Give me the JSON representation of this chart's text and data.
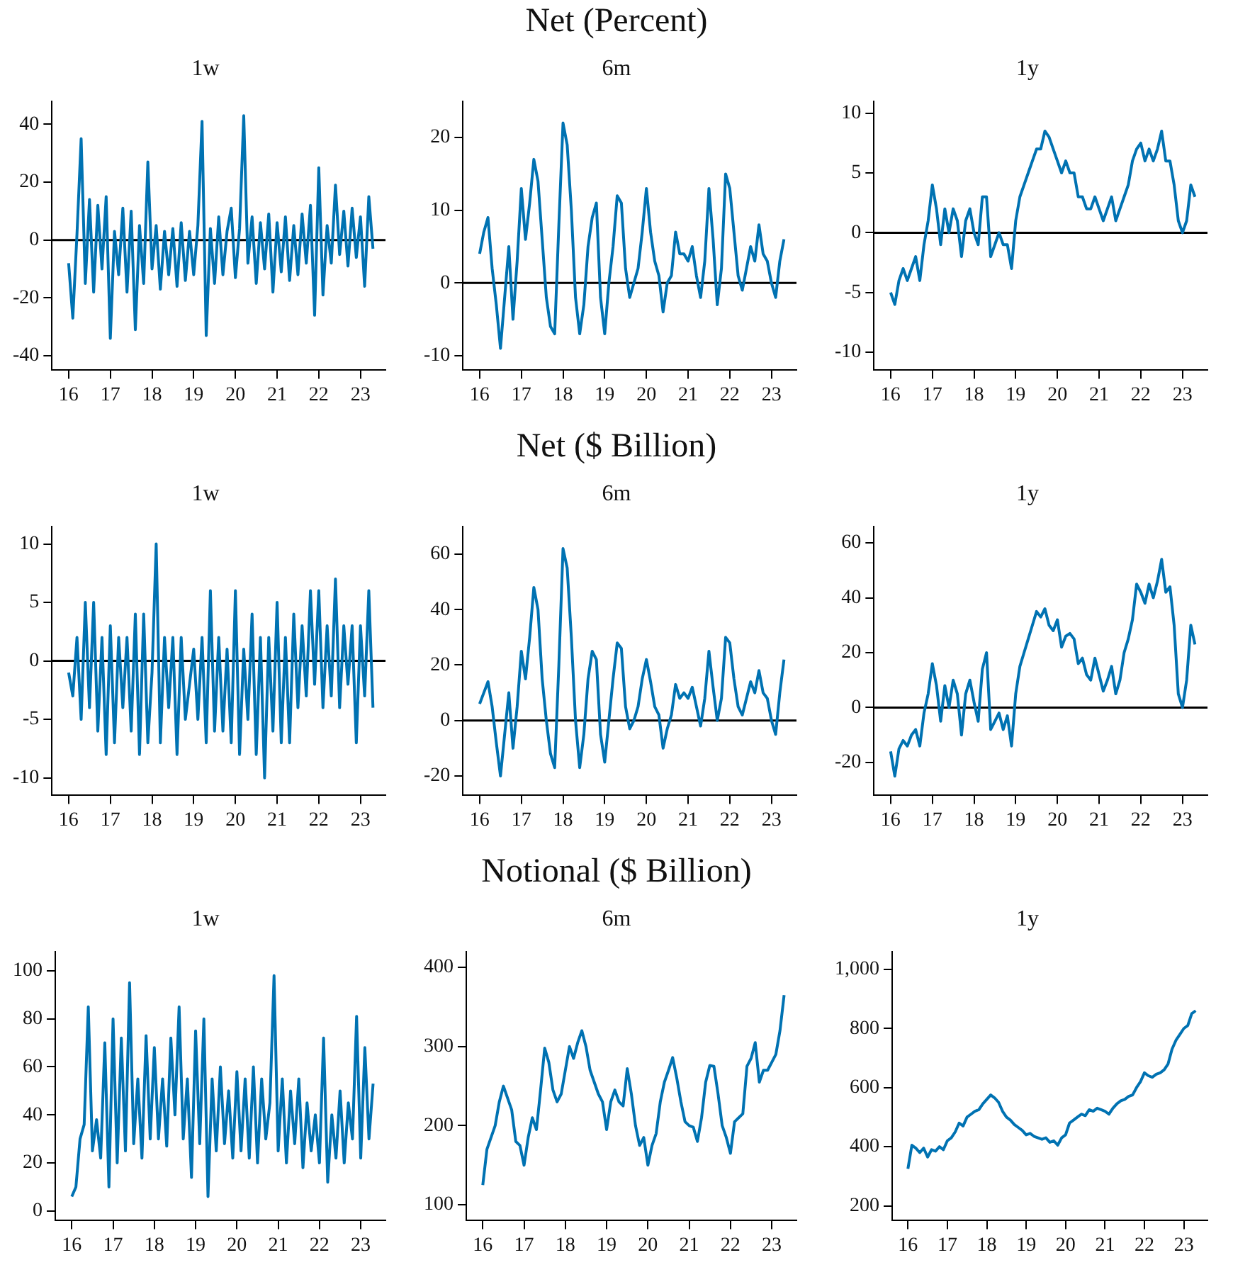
{
  "chart_data": [
    {
      "type": "line",
      "subtitle": "1w",
      "x": [
        16.0,
        16.1,
        16.2,
        16.3,
        16.4,
        16.5,
        16.6,
        16.7,
        16.8,
        16.9,
        17.0,
        17.1,
        17.2,
        17.3,
        17.4,
        17.5,
        17.6,
        17.7,
        17.8,
        17.9,
        18.0,
        18.1,
        18.2,
        18.3,
        18.4,
        18.5,
        18.6,
        18.7,
        18.8,
        18.9,
        19.0,
        19.1,
        19.2,
        19.3,
        19.4,
        19.5,
        19.6,
        19.7,
        19.8,
        19.9,
        20.0,
        20.1,
        20.2,
        20.3,
        20.4,
        20.5,
        20.6,
        20.7,
        20.8,
        20.9,
        21.0,
        21.1,
        21.2,
        21.3,
        21.4,
        21.5,
        21.6,
        21.7,
        21.8,
        21.9,
        22.0,
        22.1,
        22.2,
        22.3,
        22.4,
        22.5,
        22.6,
        22.7,
        22.8,
        22.9,
        23.0,
        23.1,
        23.2,
        23.3
      ],
      "xlim": [
        15.6,
        23.6
      ],
      "xticks": [
        16,
        17,
        18,
        19,
        20,
        21,
        22,
        23
      ],
      "ylim": [
        -45,
        48
      ],
      "yticks": [
        -40,
        -20,
        0,
        20,
        40
      ],
      "grid": false,
      "legend": false,
      "ref_lines": [
        {
          "axis": "y",
          "value": 0,
          "color": "#000000"
        }
      ],
      "series": [
        {
          "color": "#0072b2",
          "values": [
            -8,
            -27,
            2,
            35,
            -15,
            14,
            -18,
            12,
            -10,
            15,
            -34,
            3,
            -12,
            11,
            -18,
            10,
            -31,
            5,
            -15,
            27,
            -10,
            5,
            -17,
            3,
            -12,
            4,
            -16,
            6,
            -14,
            3,
            -12,
            5,
            41,
            -33,
            4,
            -15,
            8,
            -12,
            3,
            11,
            -13,
            4,
            43,
            -8,
            8,
            -15,
            6,
            -10,
            9,
            -18,
            6,
            -11,
            8,
            -14,
            5,
            -12,
            9,
            -8,
            12,
            -26,
            25,
            -19,
            5,
            -8,
            19,
            -5,
            10,
            -9,
            11,
            -6,
            8,
            -16,
            15,
            -3
          ]
        }
      ]
    },
    {
      "type": "line",
      "title": "Net (Percent)",
      "subtitle": "6m",
      "x": [
        16.0,
        16.1,
        16.2,
        16.3,
        16.4,
        16.5,
        16.6,
        16.7,
        16.8,
        16.9,
        17.0,
        17.1,
        17.2,
        17.3,
        17.4,
        17.5,
        17.6,
        17.7,
        17.8,
        17.9,
        18.0,
        18.1,
        18.2,
        18.3,
        18.4,
        18.5,
        18.6,
        18.7,
        18.8,
        18.9,
        19.0,
        19.1,
        19.2,
        19.3,
        19.4,
        19.5,
        19.6,
        19.7,
        19.8,
        19.9,
        20.0,
        20.1,
        20.2,
        20.3,
        20.4,
        20.5,
        20.6,
        20.7,
        20.8,
        20.9,
        21.0,
        21.1,
        21.2,
        21.3,
        21.4,
        21.5,
        21.6,
        21.7,
        21.8,
        21.9,
        22.0,
        22.1,
        22.2,
        22.3,
        22.4,
        22.5,
        22.6,
        22.7,
        22.8,
        22.9,
        23.0,
        23.1,
        23.2,
        23.3
      ],
      "xlim": [
        15.6,
        23.6
      ],
      "xticks": [
        16,
        17,
        18,
        19,
        20,
        21,
        22,
        23
      ],
      "ylim": [
        -12,
        25
      ],
      "yticks": [
        -10,
        0,
        10,
        20
      ],
      "grid": false,
      "legend": false,
      "ref_lines": [
        {
          "axis": "y",
          "value": 0,
          "color": "#000000"
        }
      ],
      "series": [
        {
          "color": "#0072b2",
          "values": [
            4,
            7,
            9,
            2,
            -3,
            -9,
            -2,
            5,
            -5,
            3,
            13,
            6,
            11,
            17,
            14,
            6,
            -2,
            -6,
            -7,
            8,
            22,
            19,
            10,
            -2,
            -7,
            -3,
            5,
            9,
            11,
            -2,
            -7,
            0,
            5,
            12,
            11,
            2,
            -2,
            0,
            2,
            7,
            13,
            7,
            3,
            1,
            -4,
            0,
            1,
            7,
            4,
            4,
            3,
            5,
            1,
            -2,
            3,
            13,
            6,
            -3,
            2,
            15,
            13,
            7,
            1,
            -1,
            2,
            5,
            3,
            8,
            4,
            3,
            0,
            -2,
            3,
            6
          ]
        }
      ]
    },
    {
      "type": "line",
      "subtitle": "1y",
      "x": [
        16.0,
        16.1,
        16.2,
        16.3,
        16.4,
        16.5,
        16.6,
        16.7,
        16.8,
        16.9,
        17.0,
        17.1,
        17.2,
        17.3,
        17.4,
        17.5,
        17.6,
        17.7,
        17.8,
        17.9,
        18.0,
        18.1,
        18.2,
        18.3,
        18.4,
        18.5,
        18.6,
        18.7,
        18.8,
        18.9,
        19.0,
        19.1,
        19.2,
        19.3,
        19.4,
        19.5,
        19.6,
        19.7,
        19.8,
        19.9,
        20.0,
        20.1,
        20.2,
        20.3,
        20.4,
        20.5,
        20.6,
        20.7,
        20.8,
        20.9,
        21.0,
        21.1,
        21.2,
        21.3,
        21.4,
        21.5,
        21.6,
        21.7,
        21.8,
        21.9,
        22.0,
        22.1,
        22.2,
        22.3,
        22.4,
        22.5,
        22.6,
        22.7,
        22.8,
        22.9,
        23.0,
        23.1,
        23.2,
        23.3
      ],
      "xlim": [
        15.6,
        23.6
      ],
      "xticks": [
        16,
        17,
        18,
        19,
        20,
        21,
        22,
        23
      ],
      "ylim": [
        -11.5,
        11
      ],
      "yticks": [
        -10,
        -5,
        0,
        5,
        10
      ],
      "grid": false,
      "legend": false,
      "ref_lines": [
        {
          "axis": "y",
          "value": 0,
          "color": "#000000"
        }
      ],
      "series": [
        {
          "color": "#0072b2",
          "values": [
            -5,
            -6,
            -4,
            -3,
            -4,
            -3,
            -2,
            -4,
            -1,
            1,
            4,
            2,
            -1,
            2,
            0,
            2,
            1,
            -2,
            1,
            2,
            0,
            -1,
            3,
            3,
            -2,
            -1,
            0,
            -1,
            -1,
            -3,
            1,
            3,
            4,
            5,
            6,
            7,
            7,
            8.5,
            8,
            7,
            6,
            5,
            6,
            5,
            5,
            3,
            3,
            2,
            2,
            3,
            2,
            1,
            2,
            3,
            1,
            2,
            3,
            4,
            6,
            7,
            7.5,
            6,
            7,
            6,
            7,
            8.5,
            6,
            6,
            4,
            1,
            0,
            1,
            4,
            3
          ]
        }
      ]
    },
    {
      "type": "line",
      "subtitle": "1w",
      "x": [
        16.0,
        16.1,
        16.2,
        16.3,
        16.4,
        16.5,
        16.6,
        16.7,
        16.8,
        16.9,
        17.0,
        17.1,
        17.2,
        17.3,
        17.4,
        17.5,
        17.6,
        17.7,
        17.8,
        17.9,
        18.0,
        18.1,
        18.2,
        18.3,
        18.4,
        18.5,
        18.6,
        18.7,
        18.8,
        18.9,
        19.0,
        19.1,
        19.2,
        19.3,
        19.4,
        19.5,
        19.6,
        19.7,
        19.8,
        19.9,
        20.0,
        20.1,
        20.2,
        20.3,
        20.4,
        20.5,
        20.6,
        20.7,
        20.8,
        20.9,
        21.0,
        21.1,
        21.2,
        21.3,
        21.4,
        21.5,
        21.6,
        21.7,
        21.8,
        21.9,
        22.0,
        22.1,
        22.2,
        22.3,
        22.4,
        22.5,
        22.6,
        22.7,
        22.8,
        22.9,
        23.0,
        23.1,
        23.2,
        23.3
      ],
      "xlim": [
        15.6,
        23.6
      ],
      "xticks": [
        16,
        17,
        18,
        19,
        20,
        21,
        22,
        23
      ],
      "ylim": [
        -11.5,
        11.5
      ],
      "yticks": [
        -10,
        -5,
        0,
        5,
        10
      ],
      "grid": false,
      "legend": false,
      "ref_lines": [
        {
          "axis": "y",
          "value": 0,
          "color": "#000000"
        }
      ],
      "series": [
        {
          "color": "#0072b2",
          "values": [
            -1,
            -3,
            2,
            -5,
            5,
            -4,
            5,
            -6,
            2,
            -8,
            3,
            -7,
            2,
            -4,
            2,
            -6,
            4,
            -8,
            4,
            -7,
            -1,
            10,
            -7,
            2,
            -4,
            2,
            -8,
            2,
            -5,
            -2,
            1,
            -5,
            2,
            -7,
            6,
            -6,
            2,
            -6,
            1,
            -7,
            6,
            -8,
            1,
            -5,
            4,
            -8,
            2,
            -10,
            2,
            -6,
            5,
            -7,
            2,
            -7,
            4,
            -4,
            3,
            -3,
            6,
            -2,
            6,
            -4,
            3,
            -3,
            7,
            -4,
            3,
            -2,
            3,
            -7,
            3,
            -3,
            6,
            -4
          ]
        }
      ]
    },
    {
      "type": "line",
      "title": "Net ($ Billion)",
      "subtitle": "6m",
      "x": [
        16.0,
        16.1,
        16.2,
        16.3,
        16.4,
        16.5,
        16.6,
        16.7,
        16.8,
        16.9,
        17.0,
        17.1,
        17.2,
        17.3,
        17.4,
        17.5,
        17.6,
        17.7,
        17.8,
        17.9,
        18.0,
        18.1,
        18.2,
        18.3,
        18.4,
        18.5,
        18.6,
        18.7,
        18.8,
        18.9,
        19.0,
        19.1,
        19.2,
        19.3,
        19.4,
        19.5,
        19.6,
        19.7,
        19.8,
        19.9,
        20.0,
        20.1,
        20.2,
        20.3,
        20.4,
        20.5,
        20.6,
        20.7,
        20.8,
        20.9,
        21.0,
        21.1,
        21.2,
        21.3,
        21.4,
        21.5,
        21.6,
        21.7,
        21.8,
        21.9,
        22.0,
        22.1,
        22.2,
        22.3,
        22.4,
        22.5,
        22.6,
        22.7,
        22.8,
        22.9,
        23.0,
        23.1,
        23.2,
        23.3
      ],
      "xlim": [
        15.6,
        23.6
      ],
      "xticks": [
        16,
        17,
        18,
        19,
        20,
        21,
        22,
        23
      ],
      "ylim": [
        -27,
        70
      ],
      "yticks": [
        -20,
        0,
        20,
        40,
        60
      ],
      "grid": false,
      "legend": false,
      "ref_lines": [
        {
          "axis": "y",
          "value": 0,
          "color": "#000000"
        }
      ],
      "series": [
        {
          "color": "#0072b2",
          "values": [
            6,
            10,
            14,
            5,
            -8,
            -20,
            -5,
            10,
            -10,
            5,
            25,
            15,
            30,
            48,
            40,
            15,
            0,
            -12,
            -17,
            20,
            62,
            55,
            30,
            0,
            -17,
            -5,
            15,
            25,
            22,
            -5,
            -15,
            0,
            15,
            28,
            26,
            5,
            -3,
            0,
            5,
            15,
            22,
            14,
            5,
            2,
            -10,
            -3,
            2,
            13,
            8,
            10,
            8,
            12,
            5,
            -2,
            8,
            25,
            12,
            0,
            8,
            30,
            28,
            15,
            5,
            2,
            8,
            14,
            10,
            18,
            10,
            8,
            0,
            -5,
            10,
            22
          ]
        }
      ]
    },
    {
      "type": "line",
      "subtitle": "1y",
      "x": [
        16.0,
        16.1,
        16.2,
        16.3,
        16.4,
        16.5,
        16.6,
        16.7,
        16.8,
        16.9,
        17.0,
        17.1,
        17.2,
        17.3,
        17.4,
        17.5,
        17.6,
        17.7,
        17.8,
        17.9,
        18.0,
        18.1,
        18.2,
        18.3,
        18.4,
        18.5,
        18.6,
        18.7,
        18.8,
        18.9,
        19.0,
        19.1,
        19.2,
        19.3,
        19.4,
        19.5,
        19.6,
        19.7,
        19.8,
        19.9,
        20.0,
        20.1,
        20.2,
        20.3,
        20.4,
        20.5,
        20.6,
        20.7,
        20.8,
        20.9,
        21.0,
        21.1,
        21.2,
        21.3,
        21.4,
        21.5,
        21.6,
        21.7,
        21.8,
        21.9,
        22.0,
        22.1,
        22.2,
        22.3,
        22.4,
        22.5,
        22.6,
        22.7,
        22.8,
        22.9,
        23.0,
        23.1,
        23.2,
        23.3
      ],
      "xlim": [
        15.6,
        23.6
      ],
      "xticks": [
        16,
        17,
        18,
        19,
        20,
        21,
        22,
        23
      ],
      "ylim": [
        -32,
        66
      ],
      "yticks": [
        -20,
        0,
        20,
        40,
        60
      ],
      "grid": false,
      "legend": false,
      "ref_lines": [
        {
          "axis": "y",
          "value": 0,
          "color": "#000000"
        }
      ],
      "series": [
        {
          "color": "#0072b2",
          "values": [
            -16,
            -25,
            -15,
            -12,
            -14,
            -10,
            -8,
            -14,
            -2,
            5,
            16,
            8,
            -5,
            8,
            0,
            10,
            5,
            -10,
            5,
            10,
            2,
            -5,
            14,
            20,
            -8,
            -5,
            -2,
            -8,
            -3,
            -14,
            5,
            15,
            20,
            25,
            30,
            35,
            33,
            36,
            30,
            28,
            32,
            22,
            26,
            27,
            25,
            16,
            18,
            12,
            10,
            18,
            12,
            6,
            10,
            15,
            5,
            10,
            20,
            25,
            32,
            45,
            42,
            38,
            45,
            40,
            46,
            54,
            42,
            44,
            30,
            5,
            0,
            10,
            30,
            23
          ]
        }
      ]
    },
    {
      "type": "line",
      "subtitle": "1w",
      "x": [
        16.0,
        16.1,
        16.2,
        16.3,
        16.4,
        16.5,
        16.6,
        16.7,
        16.8,
        16.9,
        17.0,
        17.1,
        17.2,
        17.3,
        17.4,
        17.5,
        17.6,
        17.7,
        17.8,
        17.9,
        18.0,
        18.1,
        18.2,
        18.3,
        18.4,
        18.5,
        18.6,
        18.7,
        18.8,
        18.9,
        19.0,
        19.1,
        19.2,
        19.3,
        19.4,
        19.5,
        19.6,
        19.7,
        19.8,
        19.9,
        20.0,
        20.1,
        20.2,
        20.3,
        20.4,
        20.5,
        20.6,
        20.7,
        20.8,
        20.9,
        21.0,
        21.1,
        21.2,
        21.3,
        21.4,
        21.5,
        21.6,
        21.7,
        21.8,
        21.9,
        22.0,
        22.1,
        22.2,
        22.3,
        22.4,
        22.5,
        22.6,
        22.7,
        22.8,
        22.9,
        23.0,
        23.1,
        23.2,
        23.3
      ],
      "xlim": [
        15.6,
        23.6
      ],
      "xticks": [
        16,
        17,
        18,
        19,
        20,
        21,
        22,
        23
      ],
      "ylim": [
        -4,
        108
      ],
      "yticks": [
        0,
        20,
        40,
        60,
        80,
        100
      ],
      "grid": false,
      "legend": false,
      "series": [
        {
          "color": "#0072b2",
          "values": [
            6,
            10,
            30,
            36,
            85,
            25,
            38,
            22,
            70,
            10,
            80,
            20,
            72,
            25,
            95,
            28,
            55,
            22,
            73,
            30,
            68,
            30,
            55,
            27,
            72,
            40,
            85,
            30,
            55,
            14,
            75,
            28,
            80,
            6,
            55,
            25,
            60,
            28,
            50,
            22,
            58,
            25,
            55,
            22,
            60,
            20,
            55,
            30,
            45,
            98,
            25,
            55,
            20,
            50,
            28,
            55,
            18,
            45,
            25,
            40,
            20,
            72,
            12,
            40,
            22,
            50,
            20,
            45,
            30,
            81,
            22,
            68,
            30,
            53
          ]
        }
      ]
    },
    {
      "type": "line",
      "title": "Notional ($ Billion)",
      "subtitle": "6m",
      "x": [
        16.0,
        16.1,
        16.2,
        16.3,
        16.4,
        16.5,
        16.6,
        16.7,
        16.8,
        16.9,
        17.0,
        17.1,
        17.2,
        17.3,
        17.4,
        17.5,
        17.6,
        17.7,
        17.8,
        17.9,
        18.0,
        18.1,
        18.2,
        18.3,
        18.4,
        18.5,
        18.6,
        18.7,
        18.8,
        18.9,
        19.0,
        19.1,
        19.2,
        19.3,
        19.4,
        19.5,
        19.6,
        19.7,
        19.8,
        19.9,
        20.0,
        20.1,
        20.2,
        20.3,
        20.4,
        20.5,
        20.6,
        20.7,
        20.8,
        20.9,
        21.0,
        21.1,
        21.2,
        21.3,
        21.4,
        21.5,
        21.6,
        21.7,
        21.8,
        21.9,
        22.0,
        22.1,
        22.2,
        22.3,
        22.4,
        22.5,
        22.6,
        22.7,
        22.8,
        22.9,
        23.0,
        23.1,
        23.2,
        23.3
      ],
      "xlim": [
        15.6,
        23.6
      ],
      "xticks": [
        16,
        17,
        18,
        19,
        20,
        21,
        22,
        23
      ],
      "ylim": [
        80,
        420
      ],
      "yticks": [
        100,
        200,
        300,
        400
      ],
      "grid": false,
      "legend": false,
      "series": [
        {
          "color": "#0072b2",
          "values": [
            125,
            170,
            185,
            200,
            230,
            250,
            235,
            220,
            180,
            175,
            150,
            185,
            210,
            195,
            245,
            298,
            280,
            245,
            230,
            240,
            270,
            300,
            285,
            305,
            320,
            300,
            270,
            255,
            240,
            230,
            195,
            230,
            245,
            230,
            225,
            272,
            240,
            200,
            175,
            185,
            150,
            175,
            190,
            230,
            255,
            270,
            286,
            260,
            230,
            205,
            200,
            198,
            180,
            210,
            255,
            276,
            275,
            240,
            200,
            185,
            165,
            205,
            210,
            215,
            275,
            285,
            305,
            255,
            270,
            270,
            280,
            290,
            320,
            365
          ]
        }
      ]
    },
    {
      "type": "line",
      "subtitle": "1y",
      "x": [
        16.0,
        16.1,
        16.2,
        16.3,
        16.4,
        16.5,
        16.6,
        16.7,
        16.8,
        16.9,
        17.0,
        17.1,
        17.2,
        17.3,
        17.4,
        17.5,
        17.6,
        17.7,
        17.8,
        17.9,
        18.0,
        18.1,
        18.2,
        18.3,
        18.4,
        18.5,
        18.6,
        18.7,
        18.8,
        18.9,
        19.0,
        19.1,
        19.2,
        19.3,
        19.4,
        19.5,
        19.6,
        19.7,
        19.8,
        19.9,
        20.0,
        20.1,
        20.2,
        20.3,
        20.4,
        20.5,
        20.6,
        20.7,
        20.8,
        20.9,
        21.0,
        21.1,
        21.2,
        21.3,
        21.4,
        21.5,
        21.6,
        21.7,
        21.8,
        21.9,
        22.0,
        22.1,
        22.2,
        22.3,
        22.4,
        22.5,
        22.6,
        22.7,
        22.8,
        22.9,
        23.0,
        23.1,
        23.2,
        23.3
      ],
      "xlim": [
        15.6,
        23.6
      ],
      "xticks": [
        16,
        17,
        18,
        19,
        20,
        21,
        22,
        23
      ],
      "ylim": [
        150,
        1060
      ],
      "yticks": [
        200,
        400,
        600,
        800,
        {
          "value": 1000,
          "label": "1,000"
        }
      ],
      "grid": false,
      "legend": false,
      "series": [
        {
          "color": "#0072b2",
          "values": [
            325,
            405,
            395,
            380,
            395,
            365,
            390,
            385,
            400,
            390,
            420,
            430,
            450,
            480,
            470,
            500,
            510,
            520,
            525,
            545,
            560,
            575,
            565,
            550,
            520,
            500,
            490,
            475,
            465,
            455,
            440,
            445,
            435,
            430,
            425,
            430,
            415,
            420,
            405,
            430,
            440,
            480,
            490,
            500,
            510,
            505,
            525,
            520,
            530,
            525,
            520,
            510,
            530,
            545,
            555,
            560,
            570,
            575,
            600,
            620,
            650,
            640,
            635,
            645,
            650,
            660,
            680,
            730,
            760,
            780,
            800,
            810,
            850,
            860
          ]
        }
      ]
    }
  ]
}
